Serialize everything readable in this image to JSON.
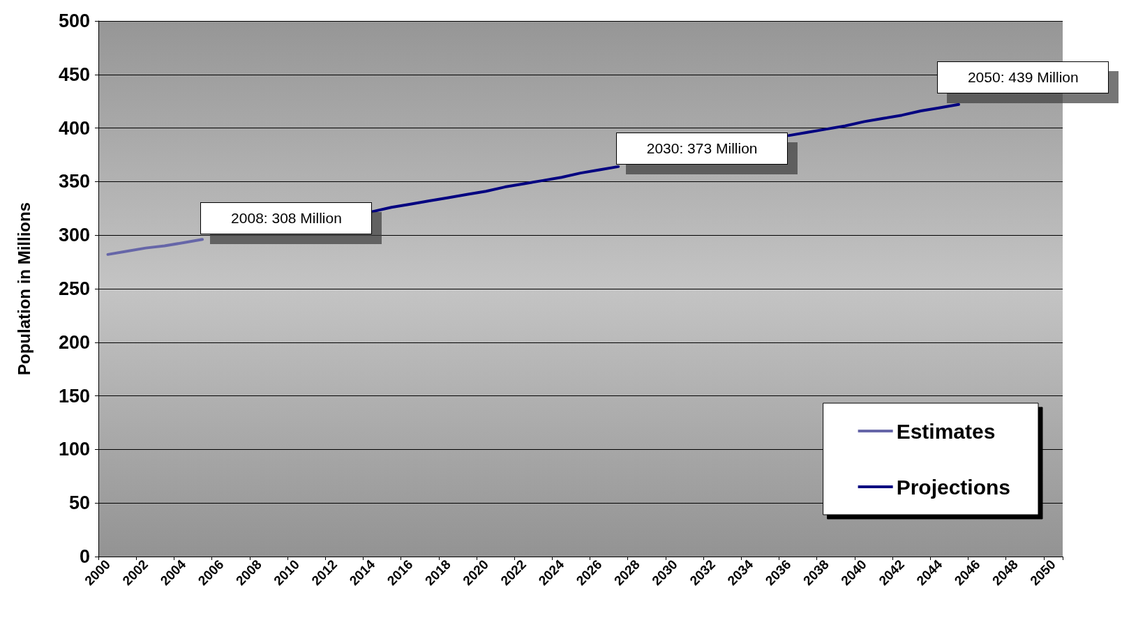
{
  "chart_data": {
    "type": "line",
    "ylabel": "Population in Millions",
    "categories": [
      "2000",
      null,
      "2002",
      null,
      "2004",
      null,
      "2006",
      null,
      "2008",
      null,
      "2010",
      null,
      "2012",
      null,
      "2014",
      null,
      "2016",
      null,
      "2018",
      null,
      "2020",
      null,
      "2022",
      null,
      "2024",
      null,
      "2026",
      null,
      "2028",
      null,
      "2030",
      null,
      "2032",
      null,
      "2034",
      null,
      "2036",
      null,
      "2038",
      null,
      "2040",
      null,
      "2042",
      null,
      "2044",
      null,
      "2046",
      null,
      "2048",
      null,
      "2050"
    ],
    "series": [
      {
        "name": "Estimates",
        "color": "#6666a8",
        "values": [
          282,
          285,
          288,
          290,
          293,
          296,
          null,
          null,
          null,
          null,
          null,
          null,
          null,
          null,
          null,
          null,
          null,
          null,
          null,
          null,
          null,
          null,
          null,
          null,
          null,
          null,
          null,
          null,
          null,
          null,
          null,
          null,
          null,
          null,
          null,
          null,
          null,
          null,
          null,
          null,
          null,
          null,
          null,
          null,
          null,
          null,
          null,
          null,
          null,
          null,
          null
        ]
      },
      {
        "name": "Projections",
        "color": "#000080",
        "values": [
          null,
          null,
          null,
          null,
          null,
          null,
          null,
          null,
          null,
          null,
          null,
          null,
          null,
          null,
          322,
          326,
          329,
          332,
          335,
          338,
          341,
          345,
          348,
          351,
          354,
          358,
          361,
          364,
          null,
          null,
          null,
          null,
          null,
          null,
          null,
          null,
          393,
          396,
          399,
          402,
          406,
          409,
          412,
          416,
          419,
          422,
          null,
          null,
          null,
          null,
          null
        ]
      }
    ],
    "ylim": [
      0,
      500
    ],
    "yticks": [
      0,
      50,
      100,
      150,
      200,
      250,
      300,
      350,
      400,
      450,
      500
    ],
    "grid": "y",
    "legend": "bottom right",
    "annotations": [
      "2008: 308 Million",
      "2030: 373 Million",
      "2050: 439 Million"
    ]
  }
}
